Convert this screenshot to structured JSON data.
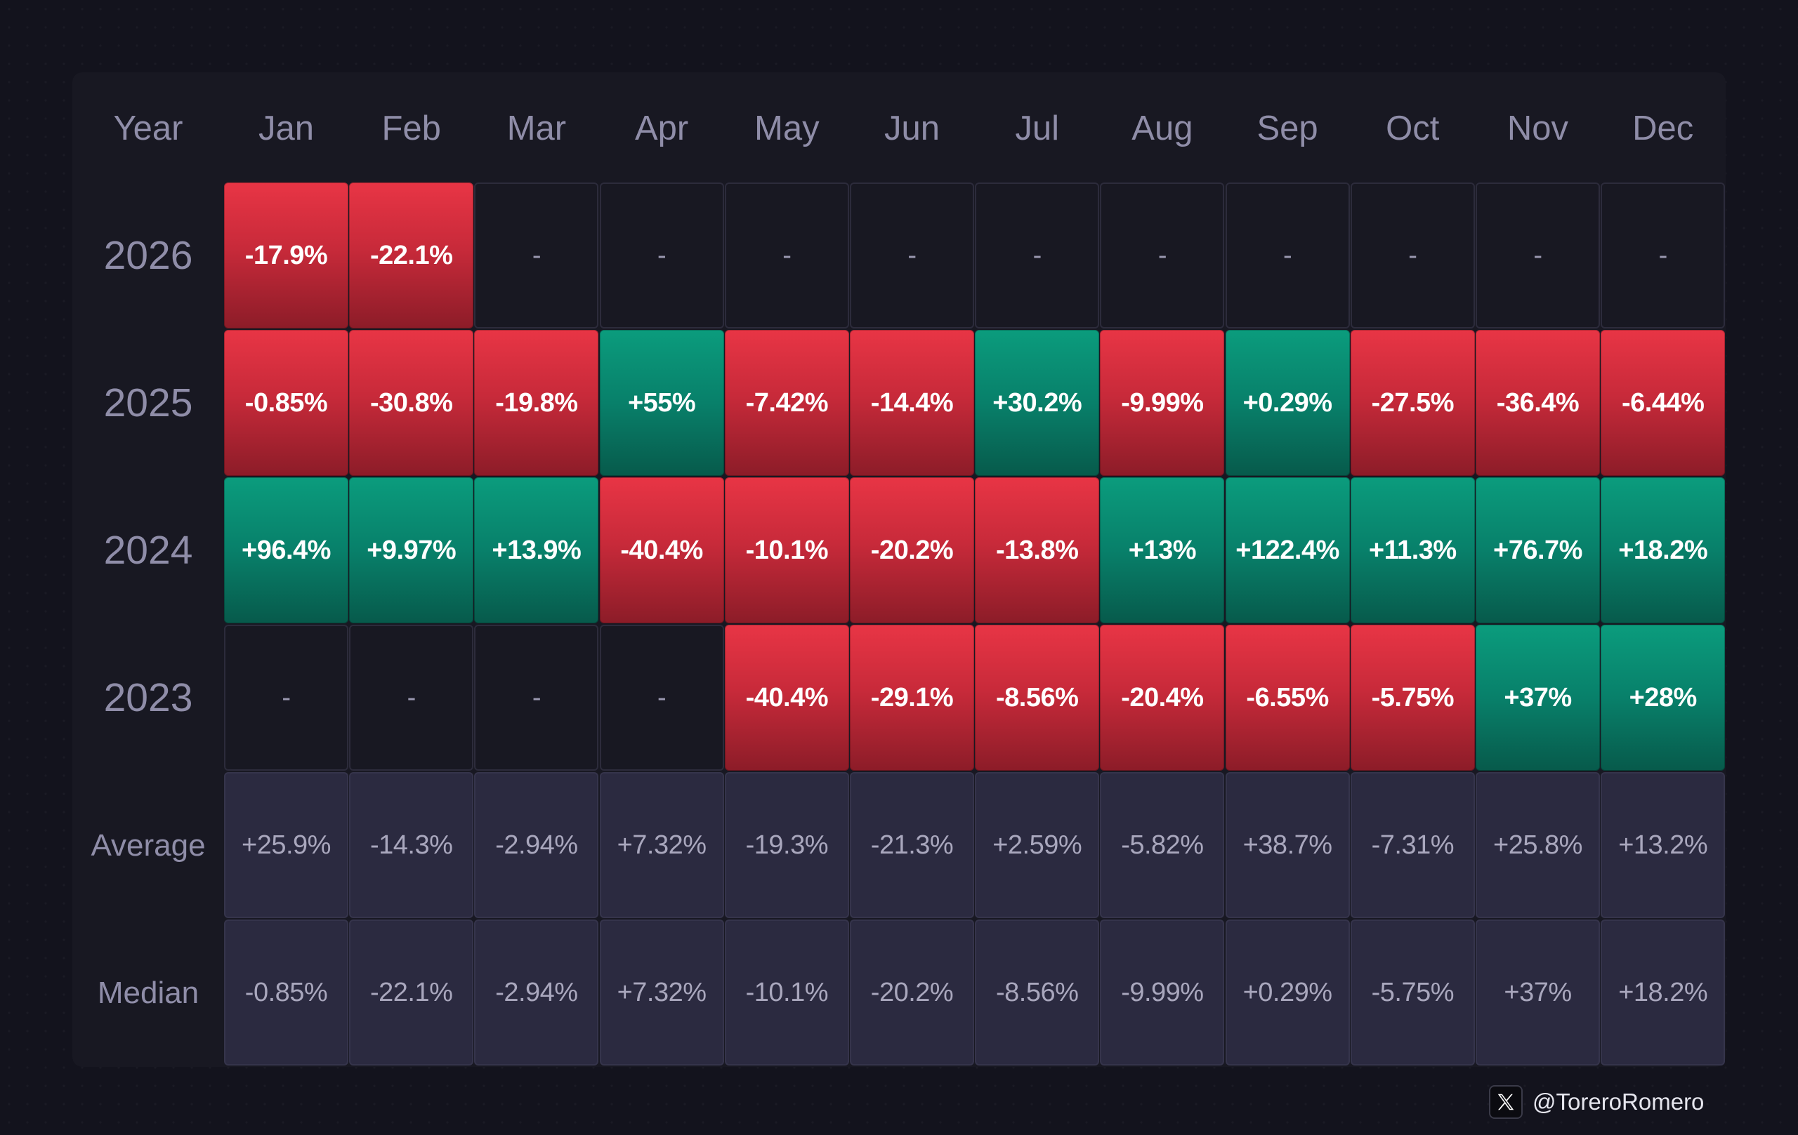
{
  "header": {
    "year_label": "Year",
    "months": [
      "Jan",
      "Feb",
      "Mar",
      "Apr",
      "May",
      "Jun",
      "Jul",
      "Aug",
      "Sep",
      "Oct",
      "Nov",
      "Dec"
    ]
  },
  "chart_data": {
    "type": "heatmap",
    "columns": [
      "Jan",
      "Feb",
      "Mar",
      "Apr",
      "May",
      "Jun",
      "Jul",
      "Aug",
      "Sep",
      "Oct",
      "Nov",
      "Dec"
    ],
    "rows": [
      {
        "label": "2026",
        "kind": "year",
        "cells": [
          "-17.9%",
          "-22.1%",
          "-",
          "-",
          "-",
          "-",
          "-",
          "-",
          "-",
          "-",
          "-",
          "-"
        ],
        "values": [
          -17.9,
          -22.1,
          null,
          null,
          null,
          null,
          null,
          null,
          null,
          null,
          null,
          null
        ]
      },
      {
        "label": "2025",
        "kind": "year",
        "cells": [
          "-0.85%",
          "-30.8%",
          "-19.8%",
          "+55%",
          "-7.42%",
          "-14.4%",
          "+30.2%",
          "-9.99%",
          "+0.29%",
          "-27.5%",
          "-36.4%",
          "-6.44%"
        ],
        "values": [
          -0.85,
          -30.8,
          -19.8,
          55,
          -7.42,
          -14.4,
          30.2,
          -9.99,
          0.29,
          -27.5,
          -36.4,
          -6.44
        ]
      },
      {
        "label": "2024",
        "kind": "year",
        "cells": [
          "+96.4%",
          "+9.97%",
          "+13.9%",
          "-40.4%",
          "-10.1%",
          "-20.2%",
          "-13.8%",
          "+13%",
          "+122.4%",
          "+11.3%",
          "+76.7%",
          "+18.2%"
        ],
        "values": [
          96.4,
          9.97,
          13.9,
          -40.4,
          -10.1,
          -20.2,
          -13.8,
          13,
          122.4,
          11.3,
          76.7,
          18.2
        ]
      },
      {
        "label": "2023",
        "kind": "year",
        "cells": [
          "-",
          "-",
          "-",
          "-",
          "-40.4%",
          "-29.1%",
          "-8.56%",
          "-20.4%",
          "-6.55%",
          "-5.75%",
          "+37%",
          "+28%"
        ],
        "values": [
          null,
          null,
          null,
          null,
          -40.4,
          -29.1,
          -8.56,
          -20.4,
          -6.55,
          -5.75,
          37,
          28
        ]
      },
      {
        "label": "Average",
        "kind": "stat",
        "cells": [
          "+25.9%",
          "-14.3%",
          "-2.94%",
          "+7.32%",
          "-19.3%",
          "-21.3%",
          "+2.59%",
          "-5.82%",
          "+38.7%",
          "-7.31%",
          "+25.8%",
          "+13.2%"
        ],
        "values": [
          25.9,
          -14.3,
          -2.94,
          7.32,
          -19.3,
          -21.3,
          2.59,
          -5.82,
          38.7,
          -7.31,
          25.8,
          13.2
        ]
      },
      {
        "label": "Median",
        "kind": "stat",
        "cells": [
          "-0.85%",
          "-22.1%",
          "-2.94%",
          "+7.32%",
          "-10.1%",
          "-20.2%",
          "-8.56%",
          "-9.99%",
          "+0.29%",
          "-5.75%",
          "+37%",
          "+18.2%"
        ],
        "values": [
          -0.85,
          -22.1,
          -2.94,
          7.32,
          -10.1,
          -20.2,
          -8.56,
          -9.99,
          0.29,
          -5.75,
          37,
          18.2
        ]
      }
    ],
    "colors": {
      "negative": "#d52f3f",
      "positive": "#0a8f73",
      "empty": "#181822",
      "stat": "#2b2a40"
    }
  },
  "credit": {
    "icon": "x-logo-icon",
    "handle": "@ToreroRomero"
  }
}
